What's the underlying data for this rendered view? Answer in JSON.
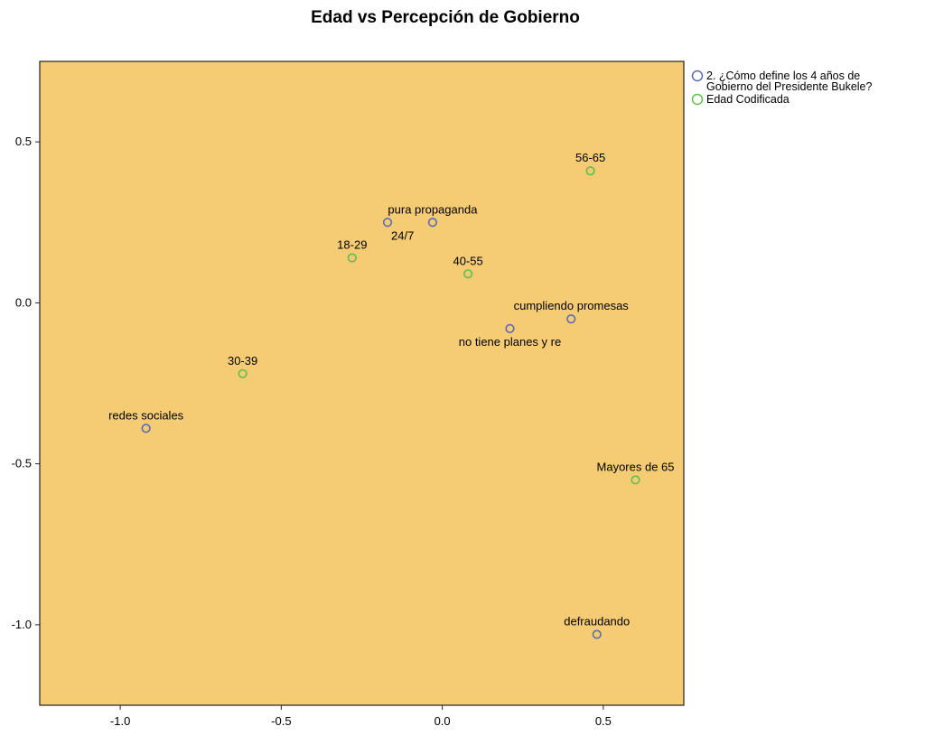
{
  "chart_data": {
    "type": "scatter",
    "title": "Edad vs Percepción de Gobierno",
    "xlabel": "",
    "ylabel": "",
    "xlim": [
      -1.25,
      0.75
    ],
    "ylim": [
      -1.25,
      0.75
    ],
    "x_ticks": [
      {
        "value": -1.0,
        "label": "-1.0"
      },
      {
        "value": -0.5,
        "label": "-0.5"
      },
      {
        "value": 0.0,
        "label": "0.0"
      },
      {
        "value": 0.5,
        "label": "0.5"
      }
    ],
    "y_ticks": [
      {
        "value": 0.5,
        "label": "0.5"
      },
      {
        "value": 0.0,
        "label": "0.0"
      },
      {
        "value": -0.5,
        "label": "-0.5"
      },
      {
        "value": -1.0,
        "label": "-1.0"
      }
    ],
    "grid": false,
    "plot_background": "#F5CB74",
    "legend_position": "right",
    "series": [
      {
        "name": "2. ¿Cómo define los 4 años de Gobierno del Presidente Bukele?",
        "legend_lines": [
          "2. ¿Cómo define los 4 años de",
          "Gobierno del Presidente Bukele?"
        ],
        "color": "#5b6bb5",
        "points": [
          {
            "label": "pura propaganda",
            "x": -0.03,
            "y": 0.25,
            "label_pos": "above"
          },
          {
            "label": "24/7",
            "x": -0.17,
            "y": 0.25,
            "label_pos": "below-right"
          },
          {
            "label": "cumpliendo promesas",
            "x": 0.4,
            "y": -0.05,
            "label_pos": "above"
          },
          {
            "label": "no tiene planes y re",
            "x": 0.21,
            "y": -0.08,
            "label_pos": "below"
          },
          {
            "label": "redes sociales",
            "x": -0.92,
            "y": -0.39,
            "label_pos": "above"
          },
          {
            "label": "defraudando",
            "x": 0.48,
            "y": -1.03,
            "label_pos": "above"
          }
        ]
      },
      {
        "name": "Edad Codificada",
        "legend_lines": [
          "Edad Codificada"
        ],
        "color": "#5fbf4e",
        "points": [
          {
            "label": "56-65",
            "x": 0.46,
            "y": 0.41,
            "label_pos": "above"
          },
          {
            "label": "18-29",
            "x": -0.28,
            "y": 0.14,
            "label_pos": "above"
          },
          {
            "label": "40-55",
            "x": 0.08,
            "y": 0.09,
            "label_pos": "above"
          },
          {
            "label": "30-39",
            "x": -0.62,
            "y": -0.22,
            "label_pos": "above"
          },
          {
            "label": "Mayores de 65",
            "x": 0.6,
            "y": -0.55,
            "label_pos": "above"
          }
        ]
      }
    ]
  }
}
